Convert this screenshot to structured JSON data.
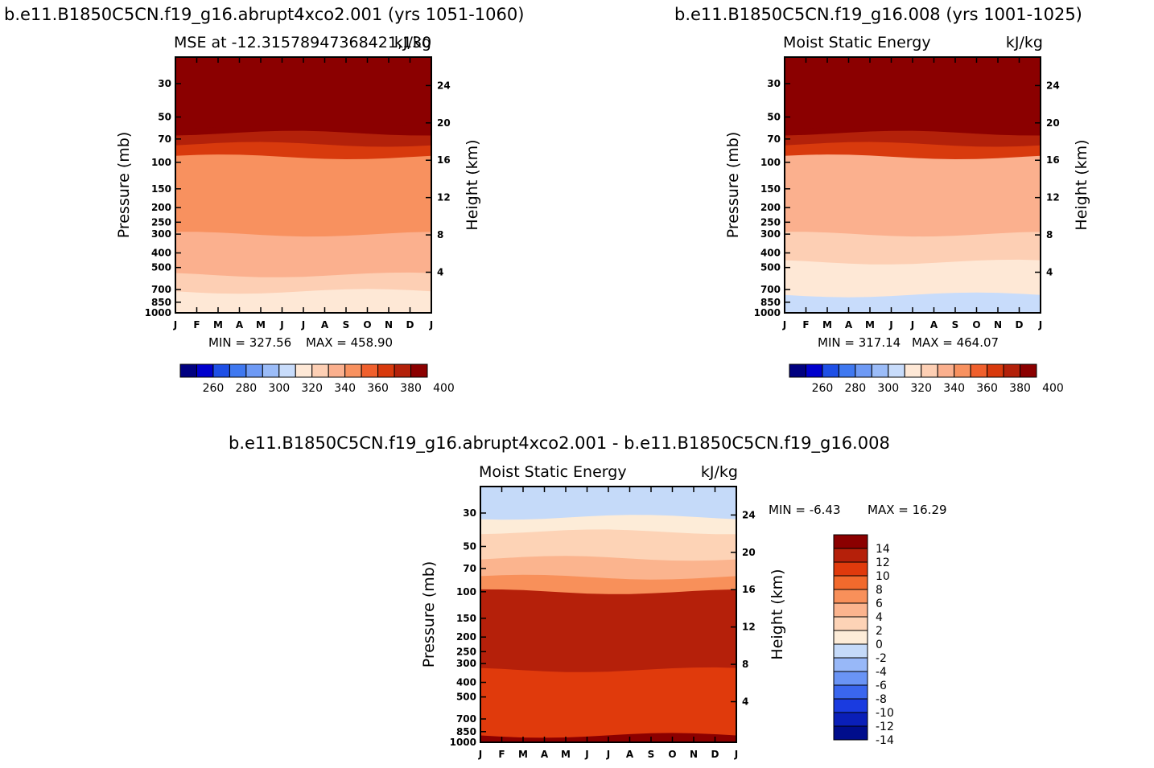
{
  "months": [
    "J",
    "F",
    "M",
    "A",
    "M",
    "J",
    "J",
    "A",
    "S",
    "O",
    "N",
    "D",
    "J"
  ],
  "pressure_ticks": [
    "30",
    "50",
    "70",
    "100",
    "150",
    "200",
    "250",
    "300",
    "400",
    "500",
    "700",
    "850",
    "1000"
  ],
  "height_ticks": [
    "4",
    "8",
    "12",
    "16",
    "20",
    "24"
  ],
  "axis_labels": {
    "pressure": "Pressure (mb)",
    "height": "Height (km)"
  },
  "colors": {
    "abs": [
      "#000080",
      "#0000cd",
      "#1e4fe6",
      "#3f78f0",
      "#6e9af5",
      "#9bbcf8",
      "#c8dcfb",
      "#fee8d6",
      "#fdcfb4",
      "#fbb08e",
      "#f8915f",
      "#f0602d",
      "#d83a0d",
      "#b3210a",
      "#8b0000"
    ],
    "diff": [
      "#000d8c",
      "#0a1fb8",
      "#1a3be0",
      "#3a66ee",
      "#6a94f5",
      "#98b8f8",
      "#c5daf9",
      "#fdecd8",
      "#fdd3b6",
      "#fbb48e",
      "#f8905a",
      "#f26a2d",
      "#e03a0c",
      "#b5200a",
      "#8b0000"
    ]
  },
  "chart_data": [
    {
      "type": "heatmap",
      "title": "b.e11.B1850C5CN.f19_g16.abrupt4xco2.001 (yrs 1051-1060)",
      "subtitle_left": "MSE at -12.31578947368421,130",
      "subtitle_right": "kJ/kg",
      "xlabel": "",
      "ylabel": "Pressure (mb)",
      "y2label": "Height (km)",
      "min_label": "MIN = 327.56",
      "max_label": "MAX = 458.90",
      "min": 327.56,
      "max": 458.9,
      "colorbar": {
        "orientation": "horizontal",
        "labels": [
          "260",
          "280",
          "300",
          "320",
          "340",
          "360",
          "380",
          "400"
        ],
        "levels": [
          250,
          260,
          270,
          280,
          290,
          300,
          310,
          320,
          330,
          340,
          350,
          360,
          370,
          380,
          390,
          400
        ]
      },
      "bands_top_to_bottom": [
        {
          "pressure_range": [
            20,
            57
          ],
          "value": 405
        },
        {
          "pressure_range": [
            57,
            64
          ],
          "value": 395
        },
        {
          "pressure_range": [
            64,
            76
          ],
          "value": 385
        },
        {
          "pressure_range": [
            76,
            92
          ],
          "value": 370
        },
        {
          "pressure_range": [
            92,
            300
          ],
          "value": 355
        },
        {
          "pressure_range": [
            300,
            560
          ],
          "value": 345
        },
        {
          "pressure_range": [
            560,
            720
          ],
          "value": 335
        },
        {
          "pressure_range": [
            720,
            1000
          ],
          "value": 325
        }
      ]
    },
    {
      "type": "heatmap",
      "title": "b.e11.B1850C5CN.f19_g16.008 (yrs 1001-1025)",
      "subtitle_left": "Moist Static Energy",
      "subtitle_right": "kJ/kg",
      "xlabel": "",
      "ylabel": "Pressure (mb)",
      "y2label": "Height (km)",
      "min_label": "MIN = 317.14",
      "max_label": "MAX = 464.07",
      "min": 317.14,
      "max": 464.07,
      "colorbar": {
        "orientation": "horizontal",
        "labels": [
          "260",
          "280",
          "300",
          "320",
          "340",
          "360",
          "380",
          "400"
        ],
        "levels": [
          250,
          260,
          270,
          280,
          290,
          300,
          310,
          320,
          330,
          340,
          350,
          360,
          370,
          380,
          390,
          400
        ]
      },
      "bands_top_to_bottom": [
        {
          "pressure_range": [
            20,
            57
          ],
          "value": 405
        },
        {
          "pressure_range": [
            57,
            64
          ],
          "value": 395
        },
        {
          "pressure_range": [
            64,
            76
          ],
          "value": 385
        },
        {
          "pressure_range": [
            76,
            92
          ],
          "value": 370
        },
        {
          "pressure_range": [
            92,
            300
          ],
          "value": 345
        },
        {
          "pressure_range": [
            300,
            460
          ],
          "value": 335
        },
        {
          "pressure_range": [
            460,
            760
          ],
          "value": 320
        },
        {
          "pressure_range": [
            760,
            1000
          ],
          "value": 315
        }
      ]
    },
    {
      "type": "heatmap",
      "title": "b.e11.B1850C5CN.f19_g16.abrupt4xco2.001 - b.e11.B1850C5CN.f19_g16.008",
      "subtitle_left": "Moist Static Energy",
      "subtitle_right": "kJ/kg",
      "xlabel": "",
      "ylabel": "Pressure (mb)",
      "y2label": "Height (km)",
      "min_label": "MIN = -6.43",
      "max_label": "MAX = 16.29",
      "min": -6.43,
      "max": 16.29,
      "colorbar": {
        "orientation": "vertical",
        "labels": [
          "14",
          "12",
          "10",
          "8",
          "6",
          "4",
          "2",
          "0",
          "-2",
          "-4",
          "-6",
          "-8",
          "-10",
          "-12",
          "-14"
        ],
        "levels": [
          -16,
          -14,
          -12,
          -10,
          -8,
          -6,
          -4,
          -2,
          0,
          2,
          4,
          6,
          8,
          10,
          12,
          14,
          16
        ]
      },
      "bands_top_to_bottom": [
        {
          "pressure_range": [
            20,
            32
          ],
          "value": -3
        },
        {
          "pressure_range": [
            32,
            40
          ],
          "value": -1
        },
        {
          "pressure_range": [
            40,
            60
          ],
          "value": 1
        },
        {
          "pressure_range": [
            60,
            80
          ],
          "value": 3
        },
        {
          "pressure_range": [
            80,
            100
          ],
          "value": 5
        },
        {
          "pressure_range": [
            100,
            330
          ],
          "value": 11
        },
        {
          "pressure_range": [
            330,
            900
          ],
          "value": 9
        },
        {
          "pressure_range": [
            900,
            1000
          ],
          "value": 13
        }
      ]
    }
  ]
}
